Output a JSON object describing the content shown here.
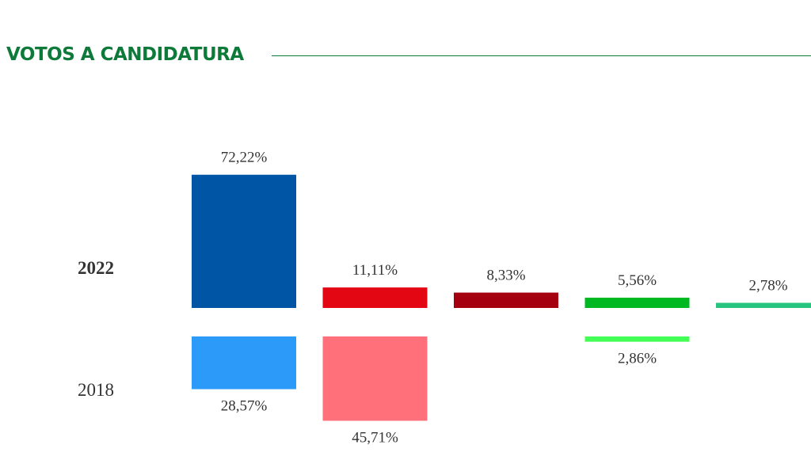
{
  "chart_data": {
    "type": "bar",
    "title": "VOTOS A CANDIDATURA",
    "layout": "mirrored: 2022 upward, 2018 downward",
    "ylim": [
      0,
      100
    ],
    "grid": false,
    "series": [
      {
        "name": "2022",
        "values": [
          72.22,
          11.11,
          8.33,
          5.56,
          2.78
        ],
        "labels": [
          "72,22%",
          "11,11%",
          "8,33%",
          "5,56%",
          "2,78%"
        ],
        "colors": [
          "#0055a4",
          "#e30613",
          "#a50010",
          "#00b820",
          "#27c47f"
        ]
      },
      {
        "name": "2018",
        "values": [
          28.57,
          45.71,
          null,
          2.86,
          null
        ],
        "labels": [
          "28,57%",
          "45,71%",
          "",
          "2,86%",
          ""
        ],
        "colors": [
          "#2b9af9",
          "#ff707a",
          "#c04050",
          "#44ff55",
          "#60e0a0"
        ]
      }
    ]
  }
}
